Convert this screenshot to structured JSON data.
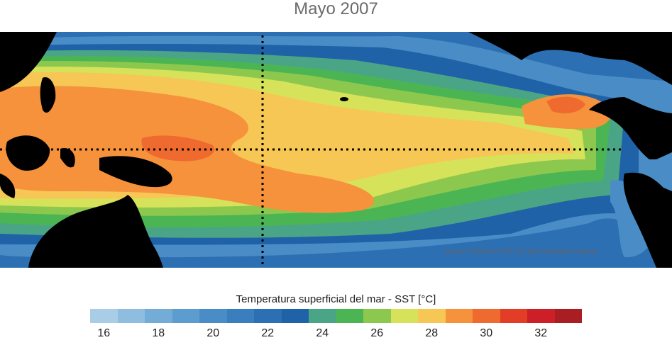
{
  "title": "Mayo 2007",
  "source_note": "Source: NOAA OI SST V2 High Resolution Dataset",
  "colorbar": {
    "title": "Temperatura superficial del mar - SST  [°C]",
    "colors": [
      "#a9cde6",
      "#8fbde0",
      "#74acd8",
      "#5c9ccf",
      "#4a8dc6",
      "#3a7ebd",
      "#2c70b3",
      "#1f62a8",
      "#4aa586",
      "#4cb553",
      "#8dc84e",
      "#d6e25a",
      "#f7c755",
      "#f5923b",
      "#ef6a2f",
      "#e23e27",
      "#cc1f27",
      "#a91e22"
    ],
    "ticks": [
      "16",
      "18",
      "20",
      "22",
      "24",
      "26",
      "28",
      "30",
      "32"
    ]
  },
  "map": {
    "land_color": "#000000",
    "guide_lines": [
      "equator-dotted-line",
      "dateline-dotted-line"
    ]
  }
}
